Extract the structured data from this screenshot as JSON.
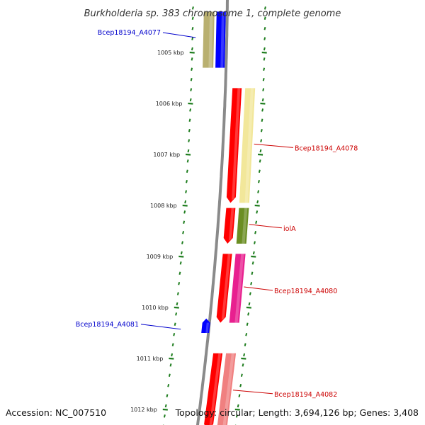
{
  "title": "Burkholderia sp. 383 chromosome 1, complete genome",
  "footer": {
    "accession": "Accession: NC_007510",
    "summary": "Topology: circular; Length: 3,694,126 bp; Genes: 3,408"
  },
  "colors": {
    "backbone": "#8a8a8a",
    "tick": "#1e7d1e",
    "forward_label": "#0000cc",
    "reverse_label": "#cc0000",
    "minor_tick": "#1e7d1e"
  },
  "scale": {
    "unit": "kbp",
    "ticks": [
      {
        "kbp": 1005,
        "label": "1005 kbp"
      },
      {
        "kbp": 1006,
        "label": "1006 kbp"
      },
      {
        "kbp": 1007,
        "label": "1007 kbp"
      },
      {
        "kbp": 1008,
        "label": "1008 kbp"
      },
      {
        "kbp": 1009,
        "label": "1009 kbp"
      },
      {
        "kbp": 1010,
        "label": "1010 kbp"
      },
      {
        "kbp": 1011,
        "label": "1011 kbp"
      },
      {
        "kbp": 1012,
        "label": "1012 kbp"
      }
    ]
  },
  "features": [
    {
      "name": "Bcep18194_A4077",
      "strand": "forward",
      "start_kbp": 1004.2,
      "end_kbp": 1005.3,
      "cds_color": "#0000ff",
      "gene_color": "#b9b070",
      "label": "Bcep18194_A4077"
    },
    {
      "name": "Bcep18194_A4078",
      "strand": "reverse",
      "start_kbp": 1005.7,
      "end_kbp": 1007.95,
      "cds_color": "#ff0000",
      "gene_color": "#f2e79a",
      "label": "Bcep18194_A4078"
    },
    {
      "name": "iolA",
      "strand": "reverse",
      "start_kbp": 1008.05,
      "end_kbp": 1008.75,
      "cds_color": "#ff0000",
      "gene_color": "#6b8e23",
      "label": "iolA"
    },
    {
      "name": "Bcep18194_A4080",
      "strand": "reverse",
      "start_kbp": 1008.95,
      "end_kbp": 1010.3,
      "cds_color": "#ff0000",
      "gene_color": "#e8208f",
      "label": "Bcep18194_A4080"
    },
    {
      "name": "Bcep18194_A4081",
      "strand": "forward",
      "start_kbp": 1010.3,
      "end_kbp": 1010.5,
      "cds_color": "#0000ff",
      "gene_color": "",
      "label": "Bcep18194_A4081"
    },
    {
      "name": "Bcep18194_A4082",
      "strand": "reverse",
      "start_kbp": 1010.9,
      "end_kbp": 1012.4,
      "cds_color": "#ff0000",
      "gene_color": "#f08080",
      "label": "Bcep18194_A4082"
    }
  ]
}
